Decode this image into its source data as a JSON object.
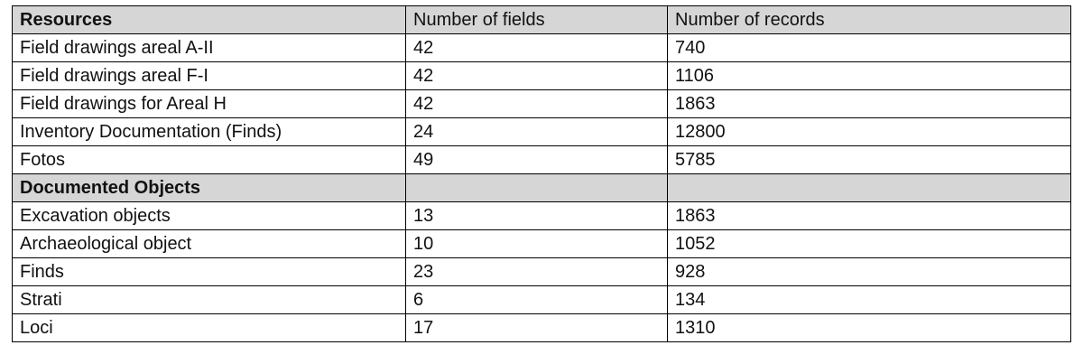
{
  "table": {
    "header": [
      "Resources",
      "Number of fields",
      "Number of records"
    ],
    "resources": [
      {
        "name": "Field drawings areal A-II",
        "fields": "42",
        "records": "740"
      },
      {
        "name": "Field drawings areal F-I",
        "fields": "42",
        "records": "1106"
      },
      {
        "name": "Field drawings for Areal H",
        "fields": "42",
        "records": "1863"
      },
      {
        "name": "Inventory Documentation (Finds)",
        "fields": "24",
        "records": "12800"
      },
      {
        "name": "Fotos",
        "fields": "49",
        "records": "5785"
      }
    ],
    "section_title": "Documented Objects",
    "objects": [
      {
        "name": "Excavation objects",
        "fields": "13",
        "records": "1863"
      },
      {
        "name": "Archaeological object",
        "fields": "10",
        "records": "1052"
      },
      {
        "name": "Finds",
        "fields": "23",
        "records": "928"
      },
      {
        "name": "Strati",
        "fields": "6",
        "records": "134"
      },
      {
        "name": "Loci",
        "fields": "17",
        "records": "1310"
      }
    ]
  },
  "colors": {
    "header_background": "#d6d6d6",
    "border": "#000000",
    "text": "#111111"
  }
}
